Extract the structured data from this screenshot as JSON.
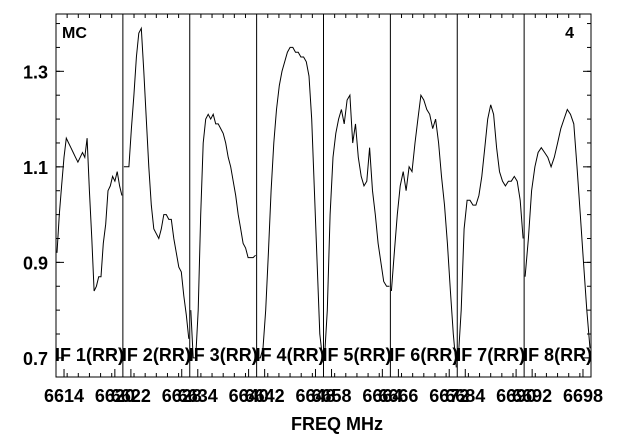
{
  "chart_data": {
    "type": "line",
    "title_left": "MC",
    "title_right": "4",
    "xlabel": "FREQ MHz",
    "ylabel": "",
    "ylim": [
      0.66,
      1.42
    ],
    "yticks": [
      {
        "value": 0.7,
        "label": "0.7"
      },
      {
        "value": 0.9,
        "label": "0.9"
      },
      {
        "value": 1.1,
        "label": "1.1"
      },
      {
        "value": 1.3,
        "label": "1.3"
      }
    ],
    "xtick_labels": [
      "6614",
      "6620",
      "6622",
      "6628",
      "6634",
      "6640",
      "6642",
      "6648",
      "6658",
      "6664",
      "6666",
      "6672",
      "6684",
      "6690",
      "6692",
      "6698"
    ],
    "grid": false,
    "legend": "none",
    "panels": [
      {
        "name": "IF 1(RR)",
        "values": [
          0.92,
          1.0,
          1.06,
          1.12,
          1.16,
          1.15,
          1.14,
          1.13,
          1.12,
          1.11,
          1.12,
          1.13,
          1.12,
          1.16,
          1.05,
          0.95,
          0.84,
          0.85,
          0.87,
          0.87,
          0.94,
          0.98,
          1.05,
          1.06,
          1.08,
          1.07,
          1.09,
          1.06,
          1.04
        ]
      },
      {
        "name": "IF 2(RR)",
        "values": [
          1.1,
          1.1,
          1.1,
          1.18,
          1.25,
          1.33,
          1.38,
          1.39,
          1.3,
          1.2,
          1.1,
          1.02,
          0.97,
          0.96,
          0.95,
          0.97,
          1.0,
          1.0,
          0.99,
          0.99,
          0.95,
          0.92,
          0.89,
          0.88,
          0.83,
          0.79,
          0.74
        ]
      },
      {
        "name": "IF 3(RR)",
        "values": [
          0.8,
          0.7,
          0.7,
          0.8,
          1.0,
          1.15,
          1.2,
          1.21,
          1.2,
          1.21,
          1.19,
          1.19,
          1.18,
          1.17,
          1.15,
          1.12,
          1.1,
          1.07,
          1.04,
          1.0,
          0.97,
          0.94,
          0.93,
          0.91,
          0.91,
          0.91,
          0.915
        ]
      },
      {
        "name": "IF 4(RR)",
        "values": [
          0.7,
          0.7,
          0.72,
          0.8,
          0.92,
          1.05,
          1.15,
          1.22,
          1.27,
          1.3,
          1.32,
          1.34,
          1.35,
          1.35,
          1.34,
          1.34,
          1.33,
          1.33,
          1.32,
          1.29,
          1.2,
          1.05,
          0.9,
          0.75,
          0.7
        ]
      },
      {
        "name": "IF 5(RR)",
        "values": [
          0.7,
          0.8,
          1.0,
          1.12,
          1.17,
          1.2,
          1.22,
          1.19,
          1.24,
          1.25,
          1.15,
          1.19,
          1.12,
          1.08,
          1.06,
          1.07,
          1.14,
          1.05,
          1.0,
          0.94,
          0.9,
          0.86,
          0.85,
          0.85
        ]
      },
      {
        "name": "IF 6(RR)",
        "values": [
          0.84,
          0.92,
          1.0,
          1.06,
          1.09,
          1.05,
          1.1,
          1.09,
          1.15,
          1.2,
          1.25,
          1.24,
          1.22,
          1.21,
          1.18,
          1.2,
          1.15,
          1.08,
          1.02,
          0.94,
          0.84,
          0.75,
          0.68
        ]
      },
      {
        "name": "IF 7(RR)",
        "values": [
          0.7,
          0.8,
          0.97,
          1.03,
          1.03,
          1.02,
          1.02,
          1.04,
          1.08,
          1.14,
          1.2,
          1.23,
          1.21,
          1.14,
          1.09,
          1.07,
          1.06,
          1.07,
          1.07,
          1.08,
          1.07,
          1.03,
          0.95
        ]
      },
      {
        "name": "IF 8(RR)",
        "values": [
          0.87,
          0.95,
          1.05,
          1.1,
          1.13,
          1.14,
          1.13,
          1.12,
          1.1,
          1.12,
          1.15,
          1.18,
          1.2,
          1.22,
          1.21,
          1.19,
          1.1,
          1.0,
          0.9,
          0.8,
          0.72
        ]
      }
    ]
  }
}
